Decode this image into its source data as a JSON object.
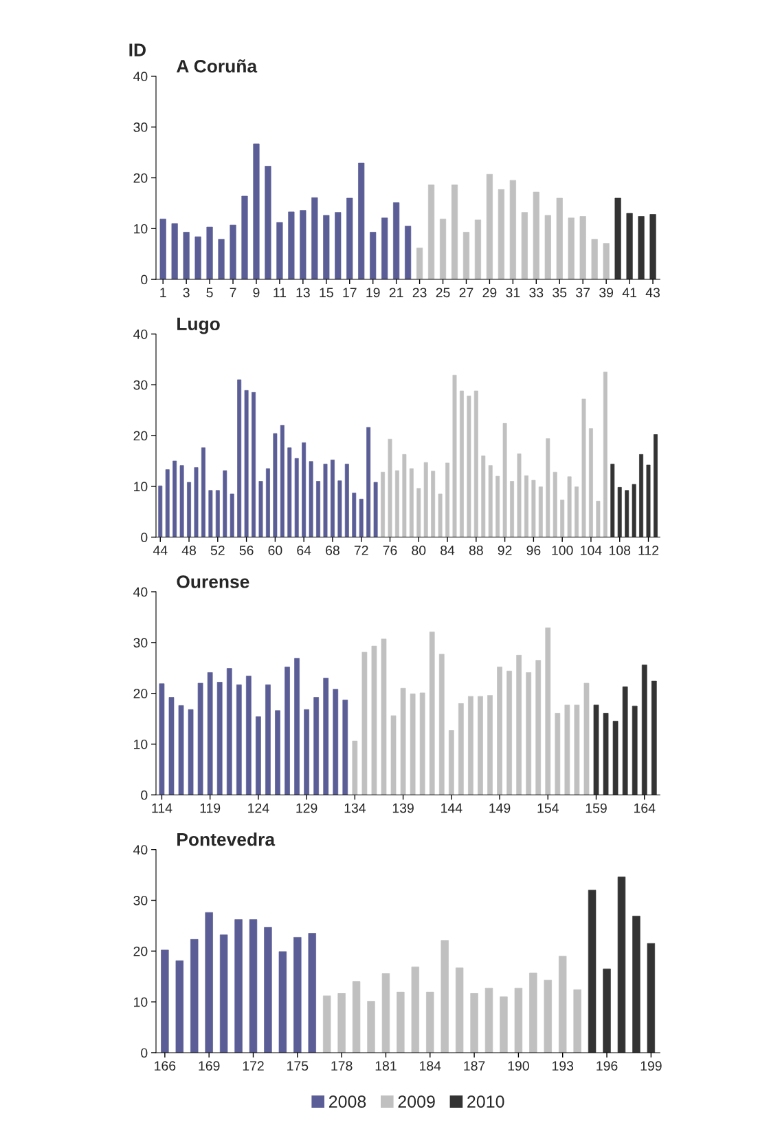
{
  "chart_data": [
    {
      "type": "bar",
      "title": "A Coruña",
      "ylabel": "ID",
      "legend": "bottom",
      "xlim": [
        0.4,
        43.6
      ],
      "xticks": [
        1,
        3,
        5,
        7,
        9,
        11,
        13,
        15,
        17,
        19,
        21,
        23,
        25,
        27,
        29,
        31,
        33,
        35,
        37,
        39,
        41,
        43
      ],
      "ylim": [
        0,
        40
      ],
      "yticks": [
        0,
        10,
        20,
        30,
        40
      ],
      "series": [
        {
          "name": "2008",
          "color": "#5b5e96",
          "x": [
            1,
            2,
            3,
            4,
            5,
            6,
            7,
            8,
            9,
            10,
            11,
            12,
            13,
            14,
            15,
            16,
            17,
            18,
            19,
            20,
            21,
            22
          ],
          "values": [
            11.9,
            11.0,
            9.3,
            8.4,
            10.3,
            7.9,
            10.7,
            16.4,
            26.7,
            22.3,
            11.2,
            13.3,
            13.6,
            16.1,
            12.6,
            13.2,
            16.0,
            22.9,
            9.3,
            12.1,
            15.1,
            10.5
          ]
        },
        {
          "name": "2009",
          "color": "#c0c0c0",
          "x": [
            23,
            24,
            25,
            26,
            27,
            28,
            29,
            30,
            31,
            32,
            33,
            34,
            35,
            36,
            37,
            38,
            39
          ],
          "values": [
            6.2,
            18.6,
            11.9,
            18.6,
            9.3,
            11.7,
            20.7,
            17.7,
            19.5,
            13.2,
            17.2,
            12.6,
            16.0,
            12.1,
            12.4,
            7.9,
            7.1
          ]
        },
        {
          "name": "2010",
          "color": "#333333",
          "x": [
            40,
            41,
            42,
            43
          ],
          "values": [
            16.0,
            13.0,
            12.4,
            12.8
          ]
        }
      ]
    },
    {
      "type": "bar",
      "title": "Lugo",
      "xlim": [
        43.4,
        113.6
      ],
      "xticks": [
        44,
        48,
        52,
        56,
        60,
        64,
        68,
        72,
        76,
        80,
        84,
        88,
        92,
        96,
        100,
        104,
        108,
        112
      ],
      "ylim": [
        0,
        40
      ],
      "yticks": [
        0,
        10,
        20,
        30,
        40
      ],
      "series": [
        {
          "name": "2008",
          "color": "#5b5e96",
          "x": [
            44,
            45,
            46,
            47,
            48,
            49,
            50,
            51,
            52,
            53,
            54,
            55,
            56,
            57,
            58,
            59,
            60,
            61,
            62,
            63,
            64,
            65,
            66,
            67,
            68,
            69,
            70,
            71,
            72,
            73,
            74
          ],
          "values": [
            10.1,
            13.3,
            15.0,
            14.1,
            10.8,
            13.7,
            17.6,
            9.2,
            9.2,
            13.1,
            8.5,
            31.0,
            28.9,
            28.5,
            11.0,
            13.5,
            20.4,
            22.0,
            17.6,
            15.5,
            18.6,
            14.9,
            11.0,
            14.4,
            15.2,
            11.1,
            14.4,
            8.7,
            7.5,
            21.6,
            10.8
          ]
        },
        {
          "name": "2009",
          "color": "#c0c0c0",
          "x": [
            75,
            76,
            77,
            78,
            79,
            80,
            81,
            82,
            83,
            84,
            85,
            86,
            87,
            88,
            89,
            90,
            91,
            92,
            93,
            94,
            95,
            96,
            97,
            98,
            99,
            100,
            101,
            102,
            103,
            104,
            105,
            106
          ],
          "values": [
            12.8,
            19.3,
            13.1,
            16.3,
            13.5,
            9.6,
            14.7,
            13.0,
            8.5,
            14.6,
            31.9,
            28.8,
            27.8,
            28.8,
            16.0,
            14.1,
            12.0,
            22.4,
            11.0,
            16.4,
            12.1,
            11.2,
            9.9,
            19.4,
            12.8,
            7.3,
            11.9,
            9.9,
            27.2,
            21.4,
            7.1,
            32.5
          ]
        },
        {
          "name": "2010",
          "color": "#333333",
          "x": [
            107,
            108,
            109,
            110,
            111,
            112,
            113
          ],
          "values": [
            14.4,
            9.8,
            9.2,
            10.4,
            16.3,
            14.2,
            20.2
          ]
        }
      ]
    },
    {
      "type": "bar",
      "title": "Ourense",
      "xlim": [
        113.4,
        165.6
      ],
      "xticks": [
        114,
        119,
        124,
        129,
        134,
        139,
        144,
        149,
        154,
        159,
        164
      ],
      "ylim": [
        0,
        40
      ],
      "yticks": [
        0,
        10,
        20,
        30,
        40
      ],
      "series": [
        {
          "name": "2008",
          "color": "#5b5e96",
          "x": [
            114,
            115,
            116,
            117,
            118,
            119,
            120,
            121,
            122,
            123,
            124,
            125,
            126,
            127,
            128,
            129,
            130,
            131,
            132,
            133
          ],
          "values": [
            21.9,
            19.2,
            17.6,
            16.8,
            22.0,
            24.1,
            22.2,
            24.9,
            21.7,
            23.4,
            15.4,
            21.7,
            16.6,
            25.2,
            26.9,
            16.8,
            19.2,
            23.0,
            20.8,
            18.7
          ]
        },
        {
          "name": "2009",
          "color": "#c0c0c0",
          "x": [
            134,
            135,
            136,
            137,
            138,
            139,
            140,
            141,
            142,
            143,
            144,
            145,
            146,
            147,
            148,
            149,
            150,
            151,
            152,
            153,
            154,
            155,
            156,
            157,
            158
          ],
          "values": [
            10.6,
            28.1,
            29.3,
            30.7,
            15.6,
            21.0,
            19.9,
            20.1,
            32.1,
            27.7,
            12.7,
            18.0,
            19.4,
            19.4,
            19.6,
            25.2,
            24.4,
            27.5,
            24.1,
            26.5,
            32.9,
            16.1,
            17.7,
            17.7,
            22.0
          ]
        },
        {
          "name": "2010",
          "color": "#333333",
          "x": [
            159,
            160,
            161,
            162,
            163,
            164,
            165
          ],
          "values": [
            17.7,
            16.1,
            14.5,
            21.3,
            17.5,
            25.6,
            22.4
          ]
        }
      ]
    },
    {
      "type": "bar",
      "title": "Pontevedra",
      "xlim": [
        165.4,
        199.6
      ],
      "xticks": [
        166,
        169,
        172,
        175,
        178,
        181,
        184,
        187,
        190,
        193,
        196,
        199
      ],
      "ylim": [
        0,
        40
      ],
      "yticks": [
        0,
        10,
        20,
        30,
        40
      ],
      "series": [
        {
          "name": "2008",
          "color": "#5b5e96",
          "x": [
            166,
            167,
            168,
            169,
            170,
            171,
            172,
            173,
            174,
            175,
            176
          ],
          "values": [
            20.2,
            18.1,
            22.3,
            27.6,
            23.2,
            26.2,
            26.2,
            24.7,
            19.9,
            22.7,
            23.5
          ]
        },
        {
          "name": "2009",
          "color": "#c0c0c0",
          "x": [
            177,
            178,
            179,
            180,
            181,
            182,
            183,
            184,
            185,
            186,
            187,
            188,
            189,
            190,
            191,
            192,
            193,
            194
          ],
          "values": [
            11.2,
            11.7,
            14.0,
            10.1,
            15.6,
            11.9,
            16.9,
            11.9,
            22.1,
            16.7,
            11.7,
            12.7,
            11.0,
            12.7,
            15.7,
            14.3,
            19.0,
            12.4
          ]
        },
        {
          "name": "2010",
          "color": "#333333",
          "x": [
            195,
            196,
            197,
            198,
            199
          ],
          "values": [
            32.0,
            16.5,
            34.6,
            26.9,
            21.5
          ]
        }
      ]
    }
  ]
}
